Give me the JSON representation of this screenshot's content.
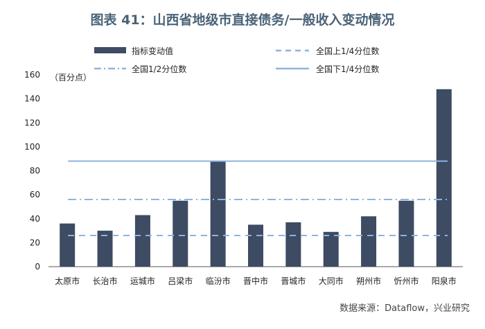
{
  "title": "图表 41：山西省地级市直接债务/一般收入变动情况",
  "source": "数据来源：Dataflow，兴业研究",
  "colors": {
    "bar": "#3d4b63",
    "dashed": "#8fb3dd",
    "dashdot": "#8fb3dd",
    "solid": "#8fb3dd",
    "title": "#4a6378"
  },
  "chart_data": {
    "type": "bar",
    "unit_label": "（百分点）",
    "categories": [
      "太原市",
      "长治市",
      "运城市",
      "吕梁市",
      "临汾市",
      "晋中市",
      "晋城市",
      "大同市",
      "朔州市",
      "忻州市",
      "阳泉市"
    ],
    "series": [
      {
        "name": "指标变动值",
        "values": [
          36,
          30,
          43,
          55,
          88,
          35,
          37,
          29,
          42,
          55,
          148
        ]
      }
    ],
    "reference_lines": [
      {
        "name": "全国上1/4分位数",
        "value": 26,
        "style": "dashed"
      },
      {
        "name": "全国1/2分位数",
        "value": 56,
        "style": "dashdot"
      },
      {
        "name": "全国下1/4分位数",
        "value": 88,
        "style": "solid"
      }
    ],
    "ylim": [
      0,
      160
    ],
    "yticks": [
      0,
      20,
      40,
      60,
      80,
      100,
      120,
      140,
      160
    ],
    "legend_position": "top"
  }
}
